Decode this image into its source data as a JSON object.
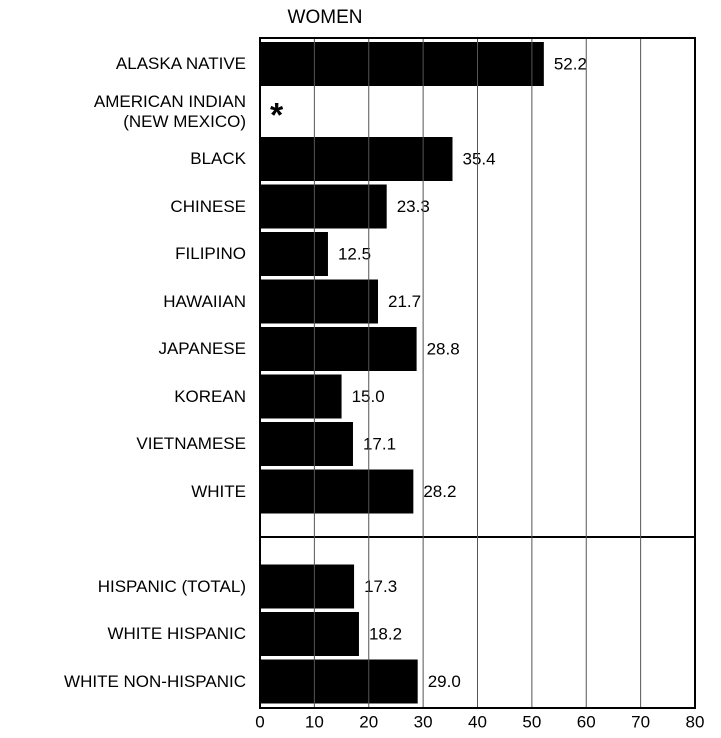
{
  "chart_data": {
    "type": "barh",
    "title": "WOMEN",
    "categories": [
      "ALASKA NATIVE",
      "AMERICAN INDIAN\n(NEW MEXICO)",
      "BLACK",
      "CHINESE",
      "FILIPINO",
      "HAWAIIAN",
      "JAPANESE",
      "KOREAN",
      "VIETNAMESE",
      "WHITE",
      null,
      "HISPANIC (TOTAL)",
      "WHITE HISPANIC",
      "WHITE NON-HISPANIC"
    ],
    "values": [
      52.2,
      null,
      35.4,
      23.3,
      12.5,
      21.7,
      28.8,
      15.0,
      17.1,
      28.2,
      null,
      17.3,
      18.2,
      29.0
    ],
    "value_labels": [
      "52.2",
      "*",
      "35.4",
      "23.3",
      "12.5",
      "21.7",
      "28.8",
      "15.0",
      "17.1",
      "28.2",
      null,
      "17.3",
      "18.2",
      "29.0"
    ],
    "color": "#000000",
    "xlim": [
      0,
      80
    ],
    "xticks": [
      0,
      10,
      20,
      30,
      40,
      50,
      60,
      70,
      80
    ],
    "grid": true
  }
}
